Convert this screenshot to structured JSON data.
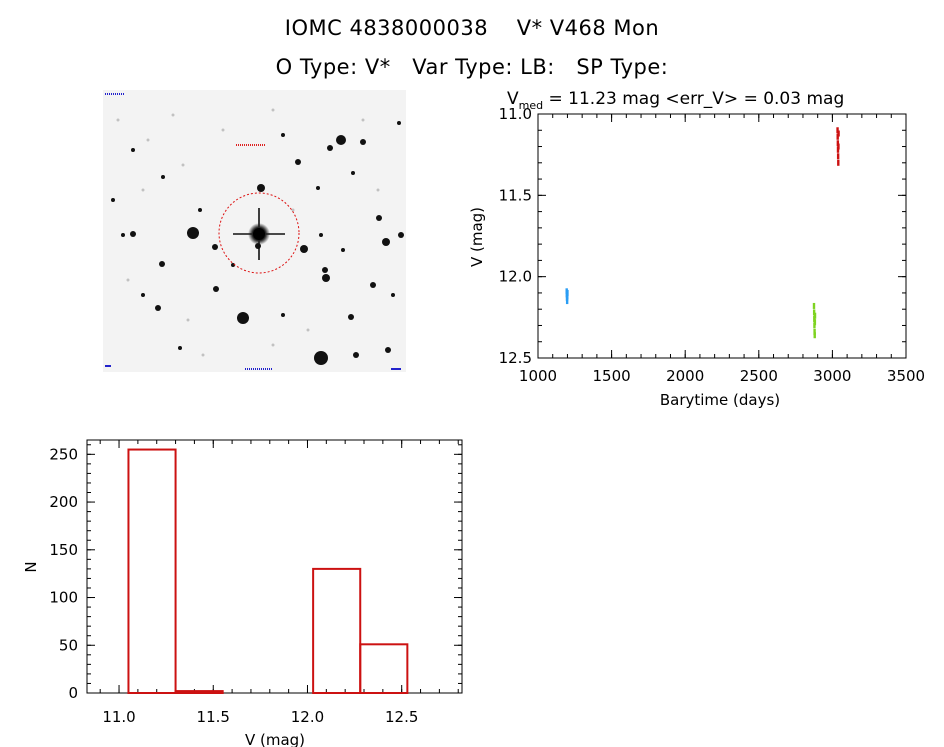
{
  "header": {
    "title": "IOMC 4838000038    V* V468 Mon",
    "subtitle": "O Type: V*   Var Type: LB:   SP Type:"
  },
  "image_panel": {
    "description_icon": "star-field-image"
  },
  "chart_data": [
    {
      "type": "scatter",
      "title_parts": {
        "v": "V",
        "sub": "med",
        "rest": " = 11.23 mag <err_V> = 0.03 mag"
      },
      "xlabel": "Barytime (days)",
      "ylabel": "V (mag)",
      "xlim": [
        1000,
        3500
      ],
      "ylim": [
        12.5,
        11.0
      ],
      "y_inverted": true,
      "xticks": [
        1000,
        1500,
        2000,
        2500,
        3000,
        3500
      ],
      "yticks": [
        11.0,
        11.5,
        12.0,
        12.5
      ],
      "xtick_labels": [
        "1000",
        "1500",
        "2000",
        "2500",
        "3000",
        "3500"
      ],
      "ytick_labels": [
        "11.0",
        "11.5",
        "12.0",
        "12.5"
      ],
      "series": [
        {
          "color": "#2a9df4",
          "x": [
            1195,
            1196,
            1197,
            1198,
            1199,
            1200
          ],
          "y": [
            12.09,
            12.11,
            12.13,
            12.15,
            12.12,
            12.1
          ]
        },
        {
          "color": "#7ed321",
          "x": [
            2875,
            2876,
            2877,
            2878,
            2879,
            2880,
            2881,
            2882
          ],
          "y": [
            12.18,
            12.22,
            12.26,
            12.3,
            12.34,
            12.36,
            12.28,
            12.24
          ]
        },
        {
          "color": "#cc1111",
          "x": [
            3035,
            3036,
            3037,
            3038,
            3039,
            3040,
            3041,
            3042
          ],
          "y": [
            11.1,
            11.14,
            11.18,
            11.22,
            11.26,
            11.3,
            11.2,
            11.12
          ]
        }
      ]
    },
    {
      "type": "bar",
      "xlabel": "V (mag)",
      "ylabel": "N",
      "xlim": [
        10.83,
        12.82
      ],
      "ylim": [
        0,
        265
      ],
      "xticks": [
        11.0,
        11.5,
        12.0,
        12.5
      ],
      "yticks": [
        0,
        50,
        100,
        150,
        200,
        250
      ],
      "xtick_labels": [
        "11.0",
        "11.5",
        "12.0",
        "12.5"
      ],
      "ytick_labels": [
        "0",
        "50",
        "100",
        "150",
        "200",
        "250"
      ],
      "color": "#cc1111",
      "bins": [
        {
          "x0": 11.05,
          "x1": 11.3,
          "n": 255
        },
        {
          "x0": 11.3,
          "x1": 11.55,
          "n": 2
        },
        {
          "x0": 12.03,
          "x1": 12.28,
          "n": 130
        },
        {
          "x0": 12.28,
          "x1": 12.53,
          "n": 51
        }
      ]
    }
  ]
}
